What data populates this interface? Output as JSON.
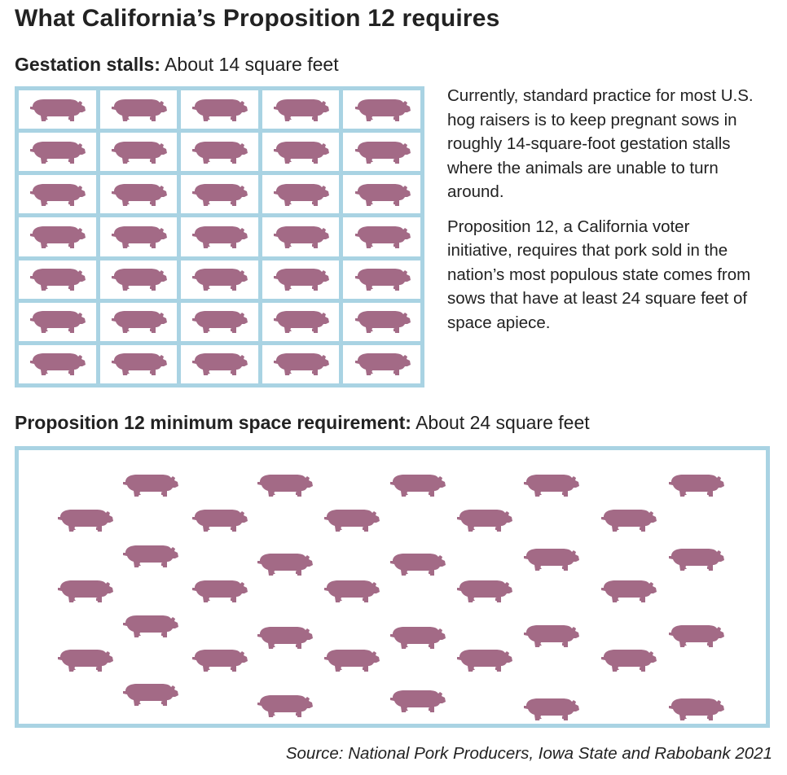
{
  "title": "What California’s Proposition 12 requires",
  "gestation": {
    "label_bold": "Gestation stalls:",
    "label_rest": " About 14 square feet",
    "rows": 7,
    "cols": 5
  },
  "description": {
    "para1": "Currently, standard practice for most U.S. hog raisers is to keep pregnant sows in roughly 14-square-foot gestation stalls where the animals are unable to turn around.",
    "para2": "Proposition 12, a California voter initiative, requires that pork sold in the nation’s most populous state comes from sows that have at least 24 square feet of space apiece."
  },
  "prop12": {
    "label_bold": "Proposition 12 minimum space requirement:",
    "label_rest": " About 24 square feet",
    "pig_count": 35
  },
  "source": "Source: National Pork Producers, Iowa State and Rabobank 2021",
  "colors": {
    "pig": "#a36a86",
    "stall_border": "#a9d3e3",
    "text": "#222222"
  },
  "icons": {
    "pig": "pig-icon"
  }
}
